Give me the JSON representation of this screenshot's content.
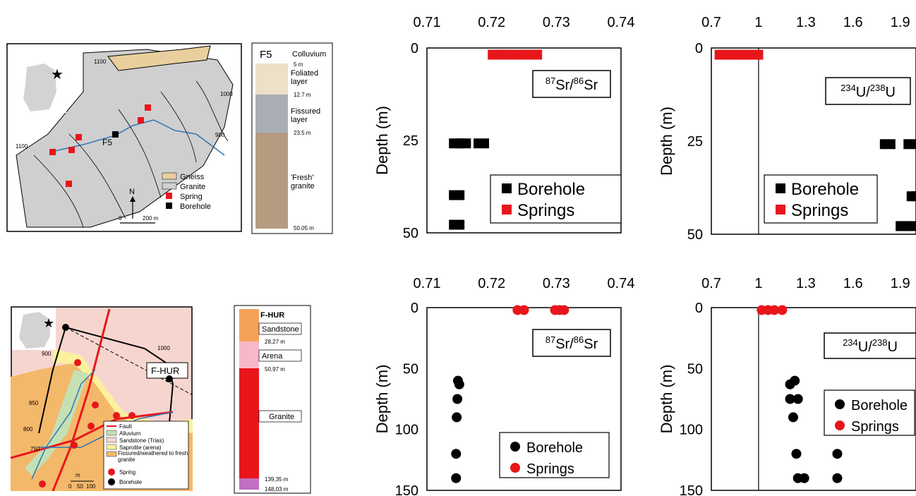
{
  "map_top": {
    "contours": [
      "1100",
      "1000",
      "900",
      "1100"
    ],
    "borehole_label": "F5",
    "legend": [
      "Gneiss",
      "Granite",
      "Spring",
      "Borehole"
    ],
    "north": "N",
    "scale": [
      "0",
      "200 m"
    ]
  },
  "log_top": {
    "title": "F5",
    "layers": [
      "Colluvium",
      "Foliated layer",
      "Fissured layer",
      "'Fresh' granite"
    ],
    "depths": [
      "5 m",
      "12.7 m",
      "23.5 m",
      "50.05 m"
    ]
  },
  "map_bottom": {
    "label": "F-HUR",
    "contours": [
      "750",
      "800",
      "850",
      "900",
      "1000"
    ],
    "legend": [
      "Fault",
      "Alluvium",
      "Sandstone (Trias)",
      "Saprolite (arena)",
      "Fissured/weathered to fresh granite",
      "Spring",
      "Borehole"
    ],
    "scale": [
      "m",
      "0",
      "50",
      "100"
    ]
  },
  "log_bottom": {
    "title": "F-HUR",
    "layers": [
      "Sandstone",
      "Arena",
      "Granite"
    ],
    "depths": [
      "28,27 m",
      "50,97 m",
      "139,35 m",
      "148,03 m"
    ]
  },
  "colors": {
    "borehole": "#000000",
    "springs": "#e8161b",
    "gneiss": "#e9cf9e",
    "granite": "#d9d9d9",
    "sandstone": "#f7d5cf",
    "alluvium": "#c5e0b4",
    "saprolite": "#fbf19c",
    "granite_fissured": "#f4b86a",
    "fault": "#e8161b"
  },
  "chart_data": [
    {
      "type": "scatter",
      "annotation": "87Sr/86Sr",
      "ylabel": "Depth (m)",
      "xlim": [
        0.71,
        0.74
      ],
      "ylim": [
        0,
        50
      ],
      "x_ticks": [
        "0.71",
        "0.72",
        "0.73",
        "0.74"
      ],
      "y_ticks": [
        "0",
        "25",
        "50"
      ],
      "marker": "square",
      "legend": [
        "Borehole",
        "Springs"
      ],
      "series": [
        {
          "name": "Borehole",
          "points": [
            [
              0.7146,
              26
            ],
            [
              0.7156,
              26
            ],
            [
              0.7184,
              26
            ],
            [
              0.7146,
              40
            ],
            [
              0.7146,
              48
            ]
          ]
        },
        {
          "name": "Springs",
          "points": [
            [
              0.7206,
              2
            ],
            [
              0.7216,
              2
            ],
            [
              0.7226,
              2
            ],
            [
              0.7246,
              2
            ],
            [
              0.7256,
              2
            ],
            [
              0.7266,
              2
            ]
          ]
        }
      ]
    },
    {
      "type": "scatter",
      "annotation": "234U/238U",
      "ylabel": "Depth (m)",
      "xlim": [
        0.7,
        2.0
      ],
      "ylim": [
        0,
        50
      ],
      "x_ticks": [
        "0.7",
        "1",
        "1.3",
        "1.6",
        "1.9"
      ],
      "y_ticks": [
        "0",
        "25",
        "50"
      ],
      "marker": "square",
      "reference_x": 1,
      "legend": [
        "Borehole",
        "Springs"
      ],
      "series": [
        {
          "name": "Borehole",
          "points": [
            [
              1.82,
              26
            ],
            [
              1.97,
              26
            ],
            [
              1.99,
              40
            ],
            [
              2.02,
              40
            ],
            [
              1.92,
              48
            ],
            [
              1.96,
              48
            ]
          ]
        },
        {
          "name": "Springs",
          "points": [
            [
              0.77,
              2
            ],
            [
              0.84,
              2
            ],
            [
              0.91,
              2
            ],
            [
              0.98,
              2
            ]
          ]
        }
      ]
    },
    {
      "type": "scatter",
      "annotation": "87Sr/86Sr",
      "ylabel": "Depth (m)",
      "xlim": [
        0.71,
        0.74
      ],
      "ylim": [
        0,
        150
      ],
      "x_ticks": [
        "0.71",
        "0.72",
        "0.73",
        "0.74"
      ],
      "y_ticks": [
        "0",
        "50",
        "100",
        "150"
      ],
      "marker": "circle",
      "legend": [
        "Borehole",
        "Springs"
      ],
      "series": [
        {
          "name": "Borehole",
          "points": [
            [
              0.7148,
              60
            ],
            [
              0.715,
              63
            ],
            [
              0.7147,
              75
            ],
            [
              0.7146,
              90
            ],
            [
              0.7145,
              120
            ],
            [
              0.7145,
              140
            ]
          ]
        },
        {
          "name": "Springs",
          "points": [
            [
              0.724,
              2
            ],
            [
              0.725,
              2
            ],
            [
              0.7298,
              2
            ],
            [
              0.7305,
              2
            ],
            [
              0.7312,
              2
            ]
          ]
        }
      ]
    },
    {
      "type": "scatter",
      "annotation": "234U/238U",
      "ylabel": "Depth (m)",
      "xlim": [
        0.7,
        2.0
      ],
      "ylim": [
        0,
        150
      ],
      "x_ticks": [
        "0.7",
        "1",
        "1.3",
        "1.6",
        "1.9"
      ],
      "y_ticks": [
        "0",
        "50",
        "100",
        "150"
      ],
      "marker": "circle",
      "reference_x": 1,
      "legend": [
        "Borehole",
        "Springs"
      ],
      "series": [
        {
          "name": "Borehole",
          "points": [
            [
              1.23,
              60
            ],
            [
              1.2,
              63
            ],
            [
              1.2,
              75
            ],
            [
              1.25,
              75
            ],
            [
              1.22,
              90
            ],
            [
              1.24,
              120
            ],
            [
              1.5,
              120
            ],
            [
              1.25,
              140
            ],
            [
              1.29,
              140
            ],
            [
              1.5,
              140
            ]
          ]
        },
        {
          "name": "Springs",
          "points": [
            [
              1.02,
              2
            ],
            [
              1.06,
              2
            ],
            [
              1.1,
              2
            ],
            [
              1.15,
              2
            ]
          ]
        }
      ]
    }
  ]
}
